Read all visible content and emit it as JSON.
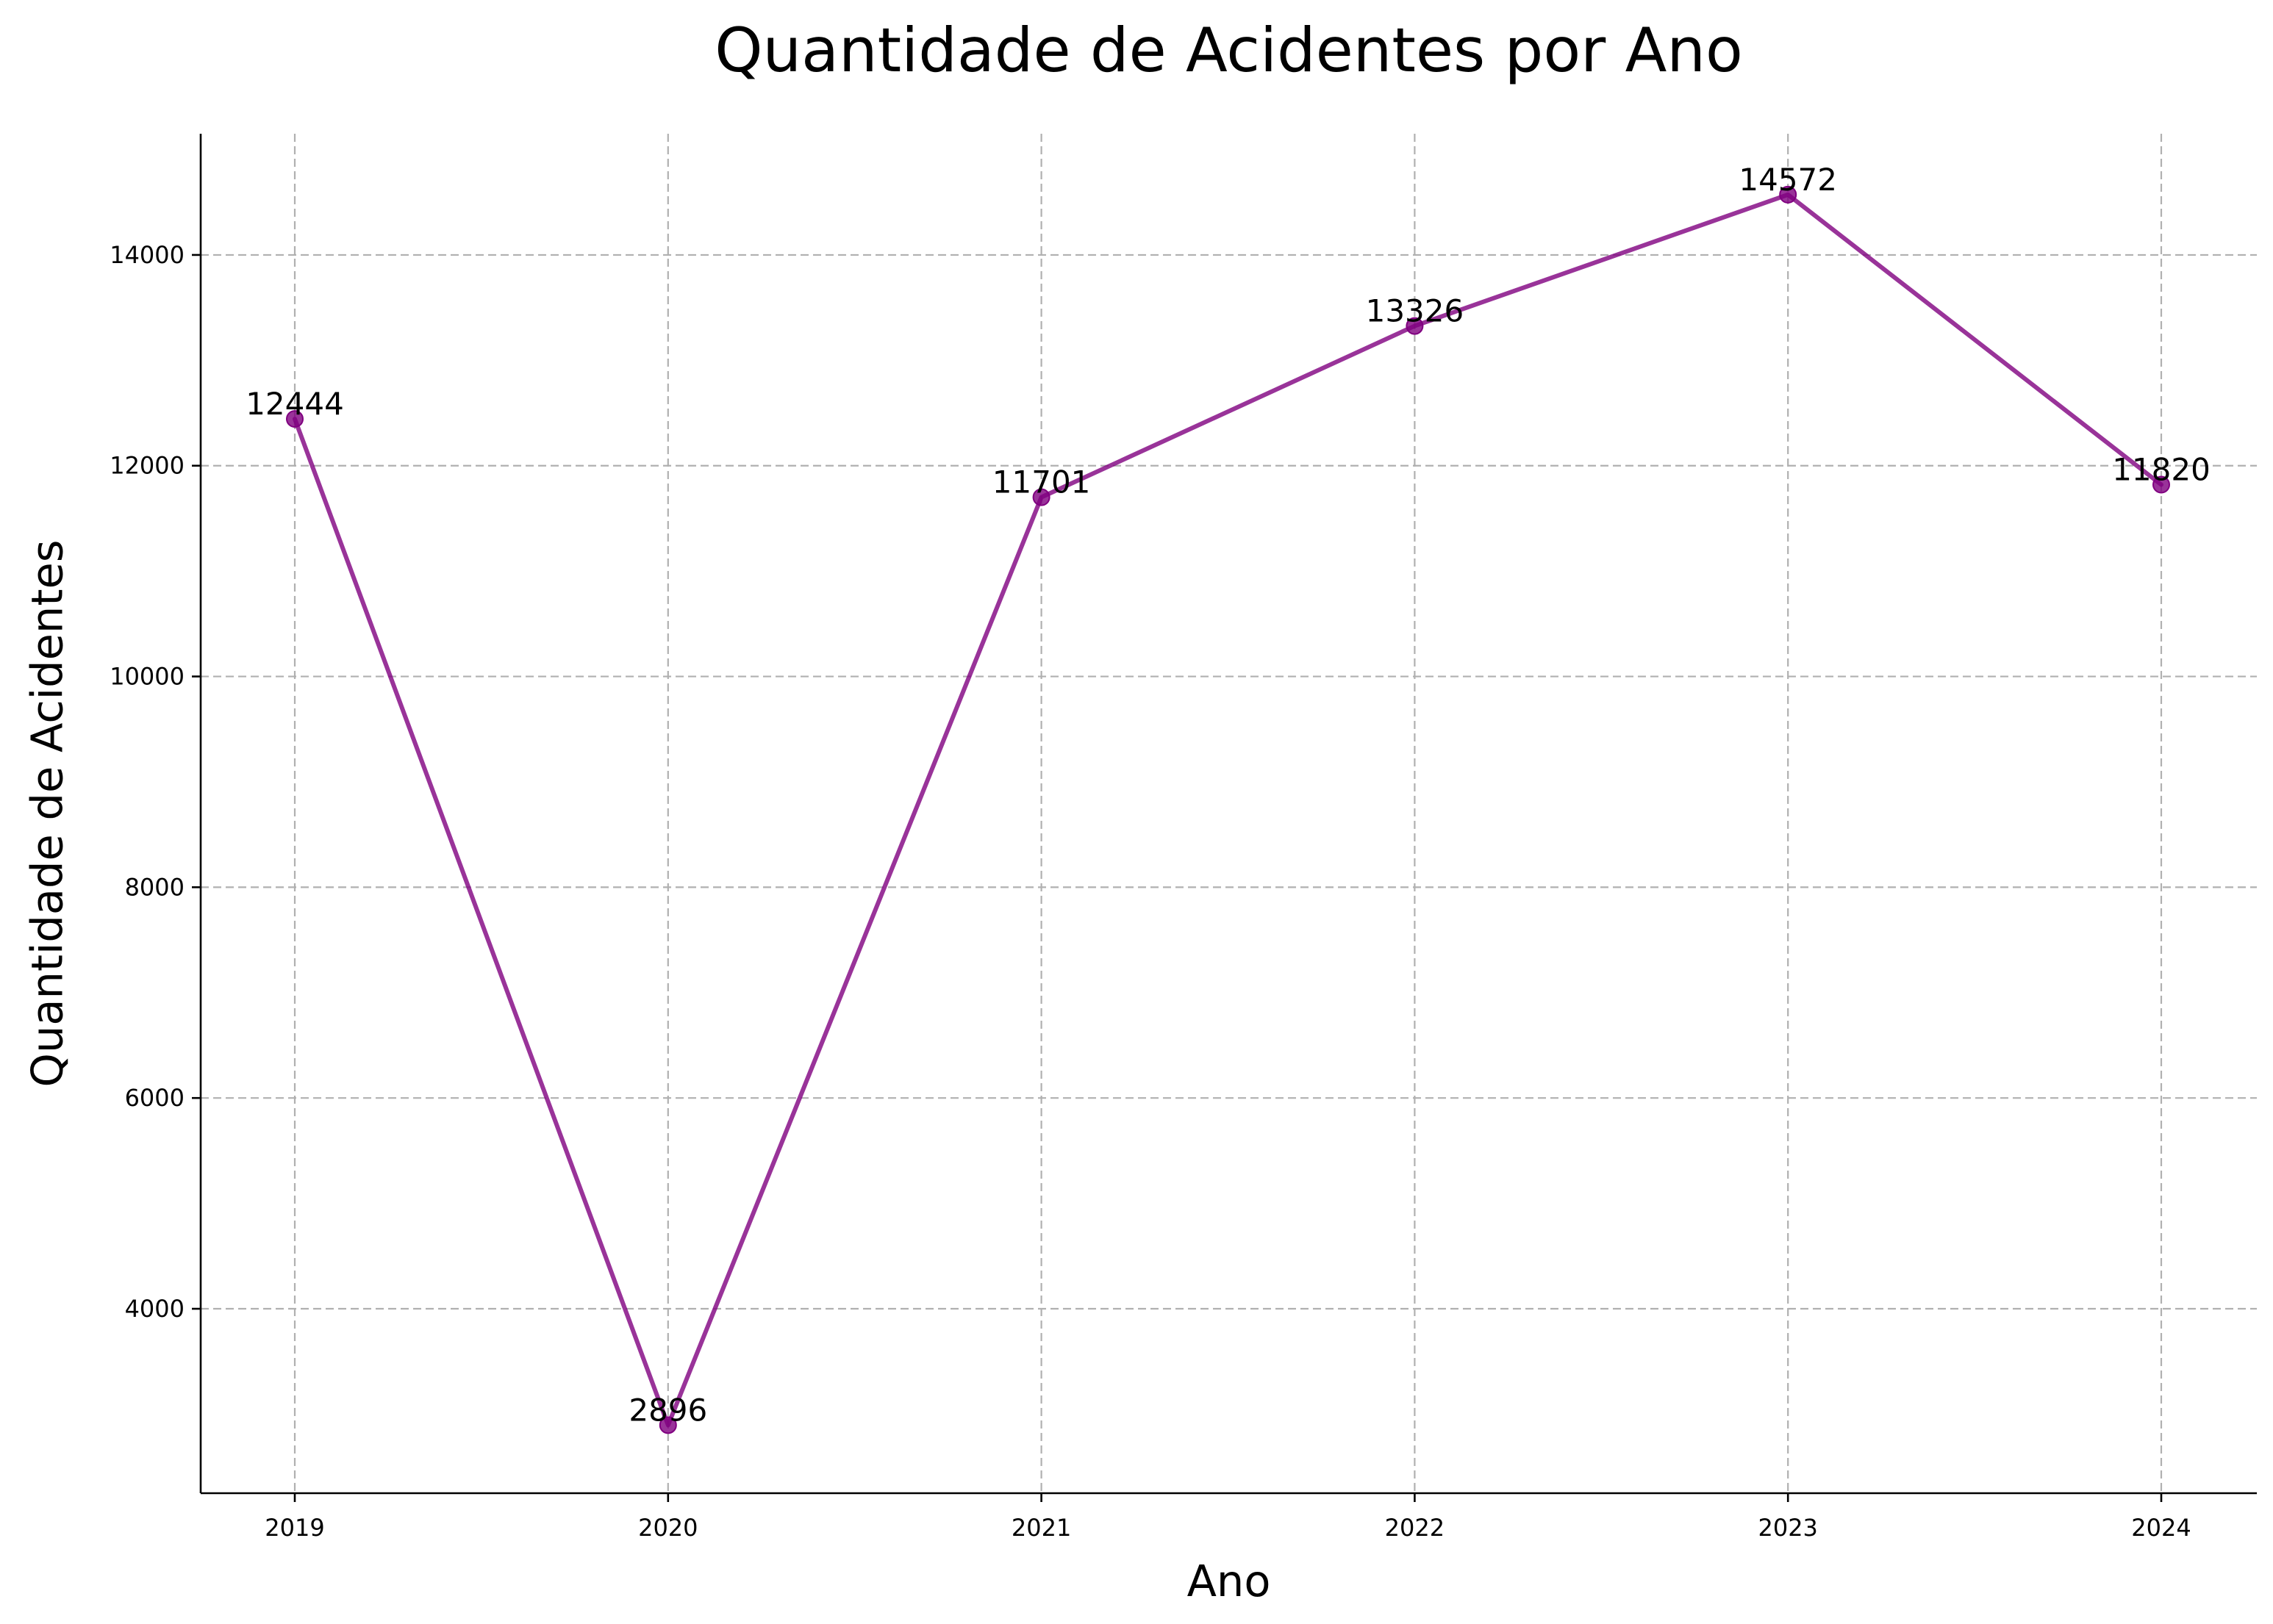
{
  "chart_data": {
    "type": "line",
    "title": "Quantidade de Acidentes por Ano",
    "xlabel": "Ano",
    "ylabel": "Quantidade de Acidentes",
    "categories": [
      "2019",
      "2020",
      "2021",
      "2022",
      "2023",
      "2024"
    ],
    "series": [
      {
        "values": [
          12444,
          2896,
          11701,
          13326,
          14572,
          11820
        ],
        "color": "#800080",
        "marker": "circle"
      }
    ],
    "data_labels": [
      "12444",
      "2896",
      "11701",
      "13326",
      "14572",
      "11820"
    ],
    "yticks": [
      4000,
      6000,
      8000,
      10000,
      12000,
      14000
    ],
    "ytick_labels": [
      "4000",
      "6000",
      "8000",
      "10000",
      "12000",
      "14000"
    ],
    "ylim": [
      2250,
      15150
    ],
    "grid": true,
    "grid_style": "dashed",
    "spines_visible": [
      "left",
      "bottom"
    ],
    "colors": {
      "line": "#800080",
      "grid": "#b0b0b0",
      "axis": "#000000",
      "background": "#ffffff"
    }
  }
}
